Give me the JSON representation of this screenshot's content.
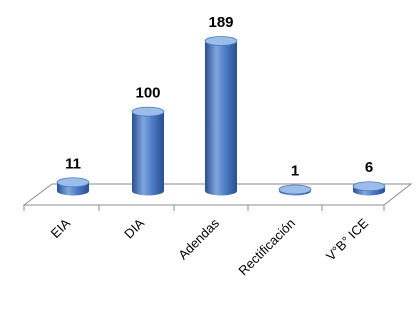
{
  "chart_data": {
    "type": "bar",
    "title": "",
    "xlabel": "",
    "ylabel": "",
    "categories": [
      "EIA",
      "DIA",
      "Adendas",
      "Rectificación",
      "V°B° ICE"
    ],
    "values": [
      11,
      100,
      189,
      1,
      6
    ],
    "data_labels": [
      "11",
      "100",
      "189",
      "1",
      "6"
    ],
    "ylim": [
      0,
      189
    ],
    "grid": false,
    "legend": "none",
    "style": "3d-cylinder"
  },
  "colors": {
    "bar_light": "#7fa6dd",
    "bar_main": "#4a79c3",
    "bar_dark": "#284f90",
    "bar_top": "#9dbde9",
    "floor_fill": "#ffffff",
    "floor_stroke": "#8c8c8c",
    "text": "#000000"
  }
}
